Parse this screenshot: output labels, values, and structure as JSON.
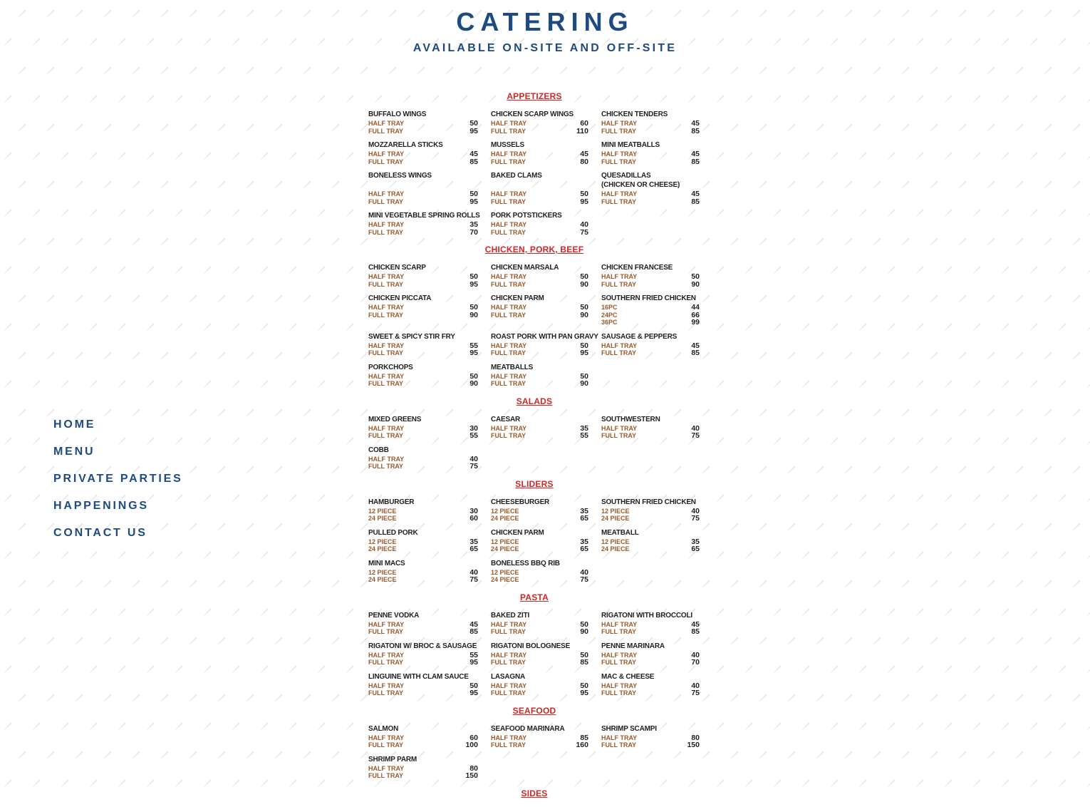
{
  "page": {
    "title": "CATERING",
    "subtitle": "AVAILABLE ON-SITE AND OFF-SITE"
  },
  "colors": {
    "navy": "#1d4a80",
    "red": "#ce2727",
    "brown": "#9b5a2b",
    "ink": "#1f1f1f",
    "background": "#ffffff",
    "pattern_tick": "#e2e2e2"
  },
  "sidebar": {
    "items": [
      {
        "label": "HOME"
      },
      {
        "label": "MENU"
      },
      {
        "label": "PRIVATE PARTIES"
      },
      {
        "label": "HAPPENINGS"
      },
      {
        "label": "CONTACT US"
      }
    ]
  },
  "menu": {
    "sections": [
      {
        "name": "APPETIZERS",
        "rows": [
          [
            {
              "name": "BUFFALO WINGS",
              "lines": [
                {
                  "label": "HALF TRAY",
                  "price": "50"
                },
                {
                  "label": "FULL TRAY",
                  "price": "95"
                }
              ]
            },
            {
              "name": "CHICKEN SCARP WINGS",
              "lines": [
                {
                  "label": "HALF TRAY",
                  "price": "60"
                },
                {
                  "label": "FULL TRAY",
                  "price": "110"
                }
              ]
            },
            {
              "name": "CHICKEN TENDERS",
              "lines": [
                {
                  "label": "HALF TRAY",
                  "price": "45"
                },
                {
                  "label": "FULL TRAY",
                  "price": "85"
                }
              ]
            }
          ],
          [
            {
              "name": "MOZZARELLA STICKS",
              "lines": [
                {
                  "label": "HALF TRAY",
                  "price": "45"
                },
                {
                  "label": "FULL TRAY",
                  "price": "85"
                }
              ]
            },
            {
              "name": "MUSSELS",
              "lines": [
                {
                  "label": "HALF TRAY",
                  "price": "45"
                },
                {
                  "label": "FULL TRAY",
                  "price": "80"
                }
              ]
            },
            {
              "name": "MINI MEATBALLS",
              "lines": [
                {
                  "label": "HALF TRAY",
                  "price": "45"
                },
                {
                  "label": "FULL TRAY",
                  "price": "85"
                }
              ]
            }
          ],
          [
            {
              "name": "BONELESS WINGS",
              "lines": [
                {
                  "label": "HALF TRAY",
                  "price": "50"
                },
                {
                  "label": "FULL TRAY",
                  "price": "95"
                }
              ]
            },
            {
              "name": "BAKED CLAMS",
              "lines": [
                {
                  "label": "HALF TRAY",
                  "price": "50"
                },
                {
                  "label": "FULL TRAY",
                  "price": "95"
                }
              ]
            },
            {
              "name": "QUESADILLAS",
              "sub": "(CHICKEN OR CHEESE)",
              "lines": [
                {
                  "label": "HALF TRAY",
                  "price": "45"
                },
                {
                  "label": "FULL TRAY",
                  "price": "85"
                }
              ]
            }
          ],
          [
            {
              "name": "MINI VEGETABLE SPRING ROLLS",
              "lines": [
                {
                  "label": "HALF TRAY",
                  "price": "35"
                },
                {
                  "label": "FULL TRAY",
                  "price": "70"
                }
              ]
            },
            {
              "name": "PORK POTSTICKERS",
              "lines": [
                {
                  "label": "HALF TRAY",
                  "price": "40"
                },
                {
                  "label": "FULL TRAY",
                  "price": "75"
                }
              ]
            }
          ]
        ]
      },
      {
        "name": "CHICKEN, PORK, BEEF",
        "rows": [
          [
            {
              "name": "CHICKEN SCARP",
              "lines": [
                {
                  "label": "HALF TRAY",
                  "price": "50"
                },
                {
                  "label": "FULL TRAY",
                  "price": "95"
                }
              ]
            },
            {
              "name": "CHICKEN MARSALA",
              "lines": [
                {
                  "label": "HALF TRAY",
                  "price": "50"
                },
                {
                  "label": "FULL TRAY",
                  "price": "90"
                }
              ]
            },
            {
              "name": "CHICKEN FRANCESE",
              "lines": [
                {
                  "label": "HALF TRAY",
                  "price": "50"
                },
                {
                  "label": "FULL TRAY",
                  "price": "90"
                }
              ]
            }
          ],
          [
            {
              "name": "CHICKEN PICCATA",
              "lines": [
                {
                  "label": "HALF TRAY",
                  "price": "50"
                },
                {
                  "label": "FULL TRAY",
                  "price": "90"
                }
              ]
            },
            {
              "name": "CHICKEN PARM",
              "lines": [
                {
                  "label": "HALF TRAY",
                  "price": "50"
                },
                {
                  "label": "FULL TRAY",
                  "price": "90"
                }
              ]
            },
            {
              "name": "SOUTHERN FRIED CHICKEN",
              "lines": [
                {
                  "label": "16PC",
                  "price": "44"
                },
                {
                  "label": "24PC",
                  "price": "66"
                },
                {
                  "label": "36PC",
                  "price": "99"
                }
              ]
            }
          ],
          [
            {
              "name": "SWEET & SPICY STIR FRY",
              "lines": [
                {
                  "label": "HALF TRAY",
                  "price": "55"
                },
                {
                  "label": "FULL TRAY",
                  "price": "95"
                }
              ]
            },
            {
              "name": "ROAST PORK WITH PAN GRAVY",
              "lines": [
                {
                  "label": "HALF TRAY",
                  "price": "50"
                },
                {
                  "label": "FULL TRAY",
                  "price": "95"
                }
              ]
            },
            {
              "name": "SAUSAGE & PEPPERS",
              "lines": [
                {
                  "label": "HALF TRAY",
                  "price": "45"
                },
                {
                  "label": "FULL TRAY",
                  "price": "85"
                }
              ]
            }
          ],
          [
            {
              "name": "PORKCHOPS",
              "lines": [
                {
                  "label": "HALF TRAY",
                  "price": "50"
                },
                {
                  "label": "FULL TRAY",
                  "price": "90"
                }
              ]
            },
            {
              "name": "MEATBALLS",
              "lines": [
                {
                  "label": "HALF TRAY",
                  "price": "50"
                },
                {
                  "label": "FULL TRAY",
                  "price": "90"
                }
              ]
            }
          ]
        ]
      },
      {
        "name": "SALADS",
        "rows": [
          [
            {
              "name": "MIXED GREENS",
              "lines": [
                {
                  "label": "HALF TRAY",
                  "price": "30"
                },
                {
                  "label": "FULL TRAY",
                  "price": "55"
                }
              ]
            },
            {
              "name": "CAESAR",
              "lines": [
                {
                  "label": "HALF TRAY",
                  "price": "35"
                },
                {
                  "label": "FULL TRAY",
                  "price": "55"
                }
              ]
            },
            {
              "name": "SOUTHWESTERN",
              "lines": [
                {
                  "label": "HALF TRAY",
                  "price": "40"
                },
                {
                  "label": "FULL TRAY",
                  "price": "75"
                }
              ]
            }
          ],
          [
            {
              "name": "COBB",
              "lines": [
                {
                  "label": "HALF TRAY",
                  "price": "40"
                },
                {
                  "label": "FULL TRAY",
                  "price": "75"
                }
              ]
            }
          ]
        ]
      },
      {
        "name": "SLIDERS",
        "rows": [
          [
            {
              "name": "HAMBURGER",
              "lines": [
                {
                  "label": "12 PIECE",
                  "price": "30"
                },
                {
                  "label": "24 PIECE",
                  "price": "60"
                }
              ]
            },
            {
              "name": "CHEESEBURGER",
              "lines": [
                {
                  "label": "12 PIECE",
                  "price": "35"
                },
                {
                  "label": "24 PIECE",
                  "price": "65"
                }
              ]
            },
            {
              "name": "SOUTHERN FRIED CHICKEN",
              "lines": [
                {
                  "label": "12 PIECE",
                  "price": "40"
                },
                {
                  "label": "24 PIECE",
                  "price": "75"
                }
              ]
            }
          ],
          [
            {
              "name": "PULLED PORK",
              "lines": [
                {
                  "label": "12 PIECE",
                  "price": "35"
                },
                {
                  "label": "24 PIECE",
                  "price": "65"
                }
              ]
            },
            {
              "name": "CHICKEN PARM",
              "lines": [
                {
                  "label": "12 PIECE",
                  "price": "35"
                },
                {
                  "label": "24 PIECE",
                  "price": "65"
                }
              ]
            },
            {
              "name": "MEATBALL",
              "lines": [
                {
                  "label": "12 PIECE",
                  "price": "35"
                },
                {
                  "label": "24 PIECE",
                  "price": "65"
                }
              ]
            }
          ],
          [
            {
              "name": "MINI MACS",
              "lines": [
                {
                  "label": "12 PIECE",
                  "price": "40"
                },
                {
                  "label": "24 PIECE",
                  "price": "75"
                }
              ]
            },
            {
              "name": "BONELESS BBQ RIB",
              "lines": [
                {
                  "label": "12 PIECE",
                  "price": "40"
                },
                {
                  "label": "24 PIECE",
                  "price": "75"
                }
              ]
            }
          ]
        ]
      },
      {
        "name": "PASTA",
        "rows": [
          [
            {
              "name": "PENNE VODKA",
              "lines": [
                {
                  "label": "HALF TRAY",
                  "price": "45"
                },
                {
                  "label": "FULL TRAY",
                  "price": "85"
                }
              ]
            },
            {
              "name": "BAKED ZITI",
              "lines": [
                {
                  "label": "HALF TRAY",
                  "price": "50"
                },
                {
                  "label": "FULL TRAY",
                  "price": "90"
                }
              ]
            },
            {
              "name": "RIGATONI WITH BROCCOLI",
              "lines": [
                {
                  "label": "HALF TRAY",
                  "price": "45"
                },
                {
                  "label": "FULL TRAY",
                  "price": "85"
                }
              ]
            }
          ],
          [
            {
              "name": "RIGATONI W/ BROC & SAUSAGE",
              "lines": [
                {
                  "label": "HALF TRAY",
                  "price": "55"
                },
                {
                  "label": "FULL TRAY",
                  "price": "95"
                }
              ]
            },
            {
              "name": "RIGATONI BOLOGNESE",
              "lines": [
                {
                  "label": "HALF TRAY",
                  "price": "50"
                },
                {
                  "label": "FULL TRAY",
                  "price": "85"
                }
              ]
            },
            {
              "name": "PENNE MARINARA",
              "lines": [
                {
                  "label": "HALF TRAY",
                  "price": "40"
                },
                {
                  "label": "FULL TRAY",
                  "price": "70"
                }
              ]
            }
          ],
          [
            {
              "name": "LINGUINE WITH CLAM SAUCE",
              "lines": [
                {
                  "label": "HALF TRAY",
                  "price": "50"
                },
                {
                  "label": "FULL TRAY",
                  "price": "95"
                }
              ]
            },
            {
              "name": "LASAGNA",
              "lines": [
                {
                  "label": "HALF TRAY",
                  "price": "50"
                },
                {
                  "label": "FULL TRAY",
                  "price": "95"
                }
              ]
            },
            {
              "name": "MAC & CHEESE",
              "lines": [
                {
                  "label": "HALF TRAY",
                  "price": "40"
                },
                {
                  "label": "FULL TRAY",
                  "price": "75"
                }
              ]
            }
          ]
        ]
      },
      {
        "name": "SEAFOOD",
        "rows": [
          [
            {
              "name": "SALMON",
              "lines": [
                {
                  "label": "HALF TRAY",
                  "price": "60"
                },
                {
                  "label": "FULL TRAY",
                  "price": "100"
                }
              ]
            },
            {
              "name": "SEAFOOD MARINARA",
              "lines": [
                {
                  "label": "HALF TRAY",
                  "price": "85"
                },
                {
                  "label": "FULL TRAY",
                  "price": "160"
                }
              ]
            },
            {
              "name": "SHRIMP SCAMPI",
              "lines": [
                {
                  "label": "HALF TRAY",
                  "price": "80"
                },
                {
                  "label": "FULL TRAY",
                  "price": "150"
                }
              ]
            }
          ],
          [
            {
              "name": "SHRIMP PARM",
              "lines": [
                {
                  "label": "HALF TRAY",
                  "price": "80"
                },
                {
                  "label": "FULL TRAY",
                  "price": "150"
                }
              ]
            }
          ]
        ]
      },
      {
        "name": "SIDES",
        "rows": []
      }
    ]
  }
}
